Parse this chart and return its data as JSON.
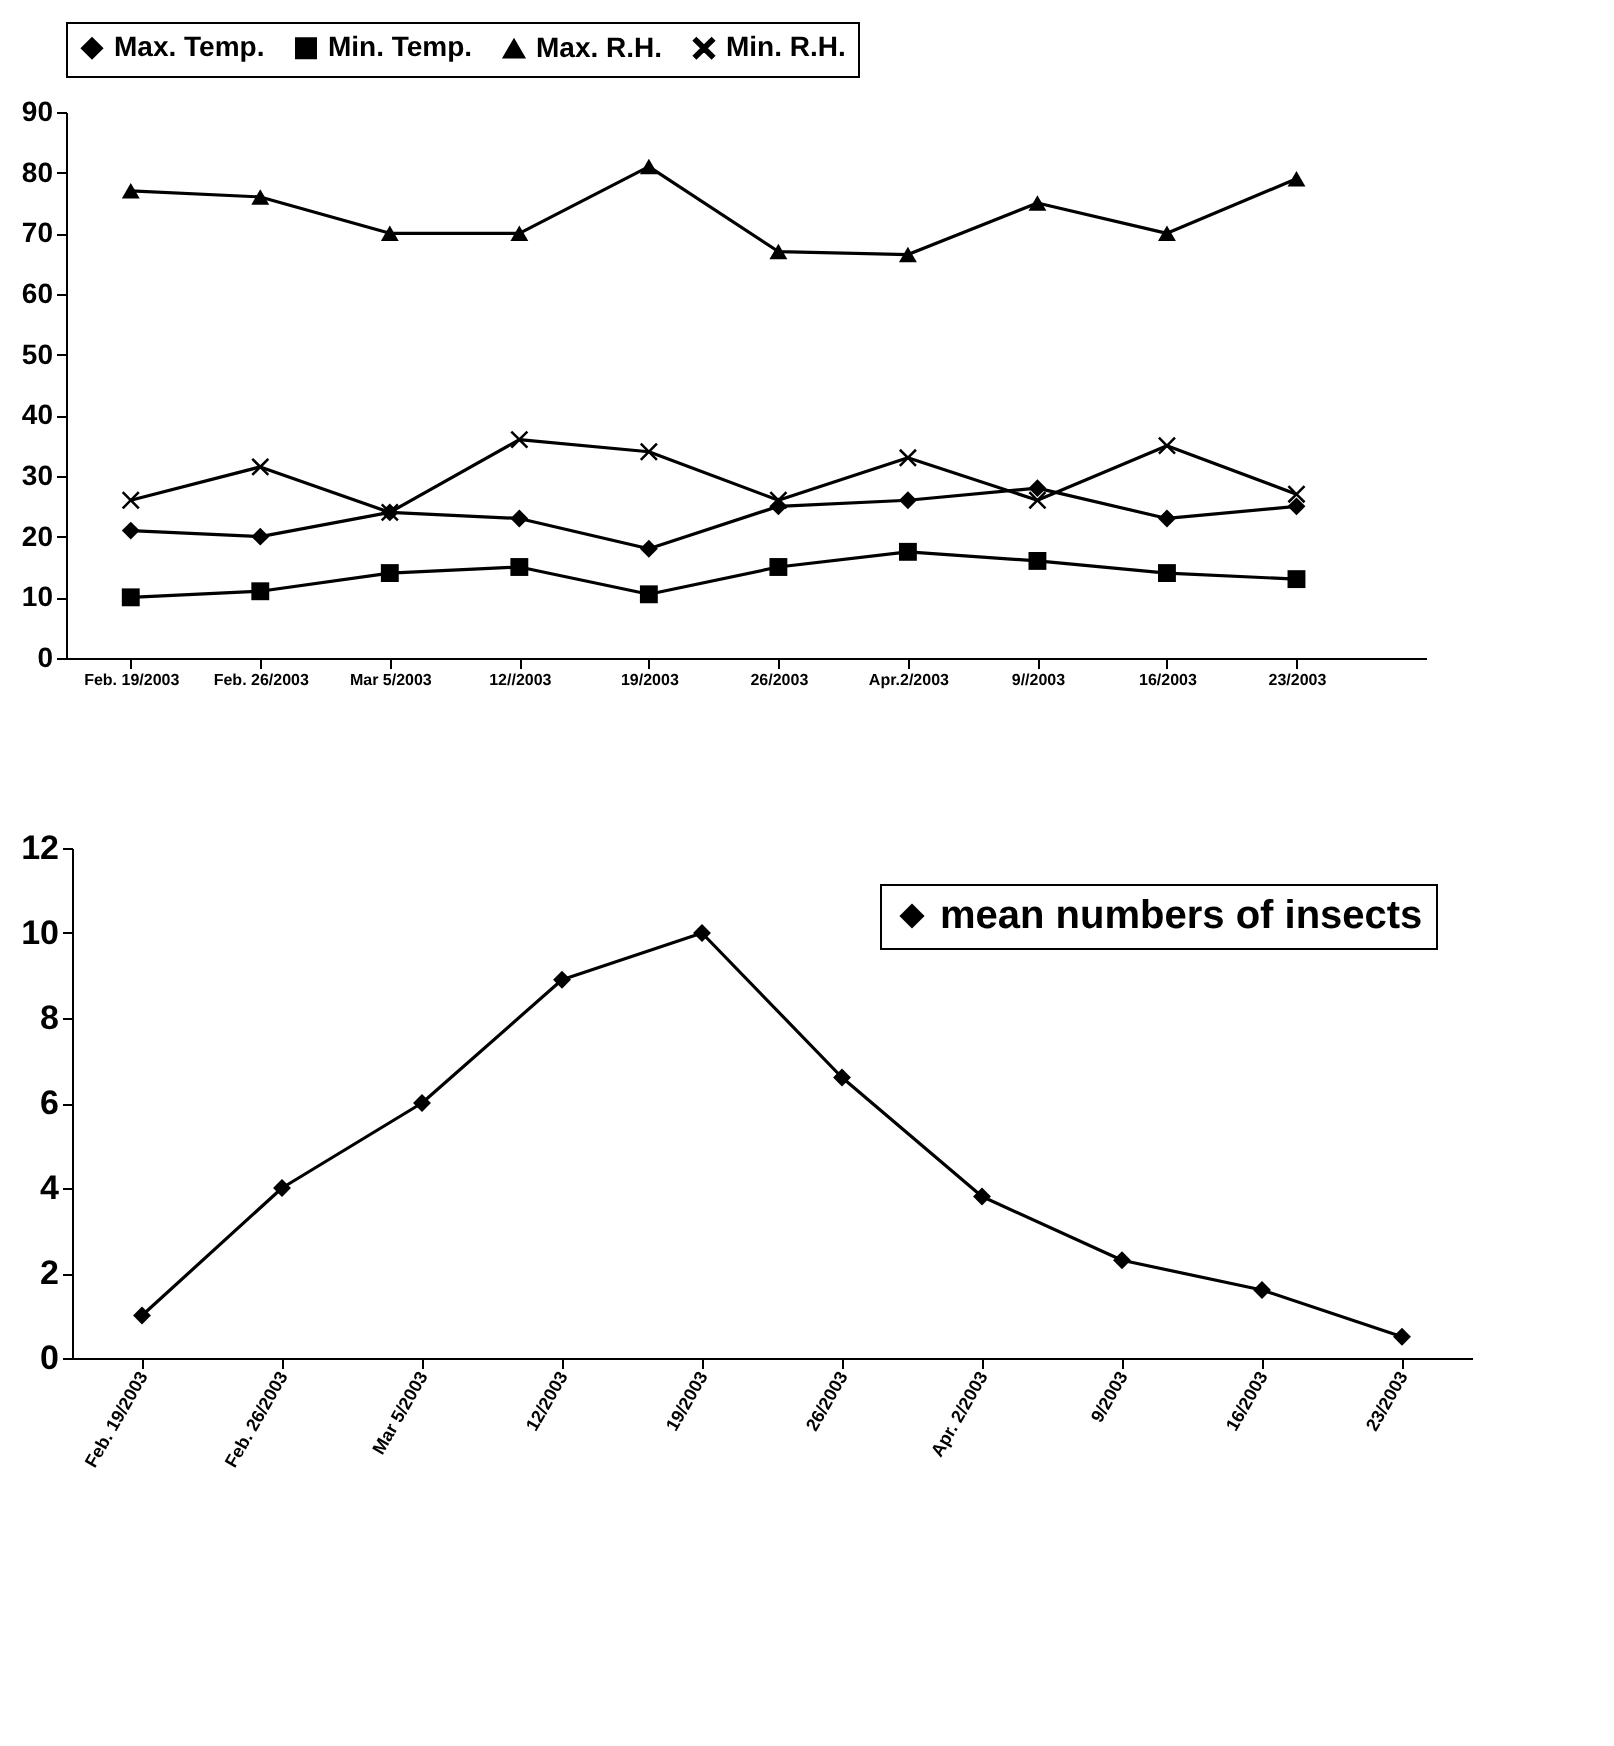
{
  "chart_data": [
    {
      "type": "line",
      "categories": [
        "Feb. 19/2003",
        "Feb. 26/2003",
        "Mar 5/2003",
        "12//2003",
        "19/2003",
        "26/2003",
        "Apr.2/2003",
        "9//2003",
        "16/2003",
        "23/2003"
      ],
      "series": [
        {
          "name": "Max. Temp.",
          "color": "#000000",
          "marker": "diamond",
          "values": [
            21,
            20,
            24,
            23,
            18,
            25,
            26,
            28,
            23,
            25
          ]
        },
        {
          "name": "Min. Temp.",
          "color": "#000000",
          "marker": "square",
          "values": [
            10,
            11,
            14,
            15,
            10.5,
            15,
            17.5,
            16,
            14,
            13
          ]
        },
        {
          "name": "Max. R.H.",
          "color": "#000000",
          "marker": "triangle",
          "values": [
            77,
            76,
            70,
            70,
            81,
            67,
            66.5,
            75,
            70,
            79
          ]
        },
        {
          "name": "Min. R.H.",
          "color": "#000000",
          "marker": "cross",
          "values": [
            26,
            31.5,
            24,
            36,
            34,
            26,
            33,
            26,
            35,
            27
          ]
        }
      ],
      "ylim": [
        0,
        90
      ],
      "yticks": [
        0,
        10,
        20,
        30,
        40,
        50,
        60,
        70,
        80,
        90
      ],
      "grid": false,
      "legend": "top",
      "line_style": "solid"
    },
    {
      "type": "line",
      "categories": [
        "Feb. 19/2003",
        "Feb. 26/2003",
        "Mar 5/2003",
        "12/2003",
        "19/2003",
        "26/2003",
        "Apr. 2/2003",
        "9/2003",
        "16/2003",
        "23/2003"
      ],
      "series": [
        {
          "name": "mean numbers of insects",
          "color": "#000000",
          "marker": "diamond",
          "values": [
            1,
            4,
            6,
            8.9,
            10,
            6.6,
            3.8,
            2.3,
            1.6,
            0.5
          ]
        }
      ],
      "ylim": [
        0,
        12
      ],
      "yticks": [
        0,
        2,
        4,
        6,
        8,
        10,
        12
      ],
      "grid": false,
      "legend": "top right",
      "line_style": "solid"
    }
  ]
}
